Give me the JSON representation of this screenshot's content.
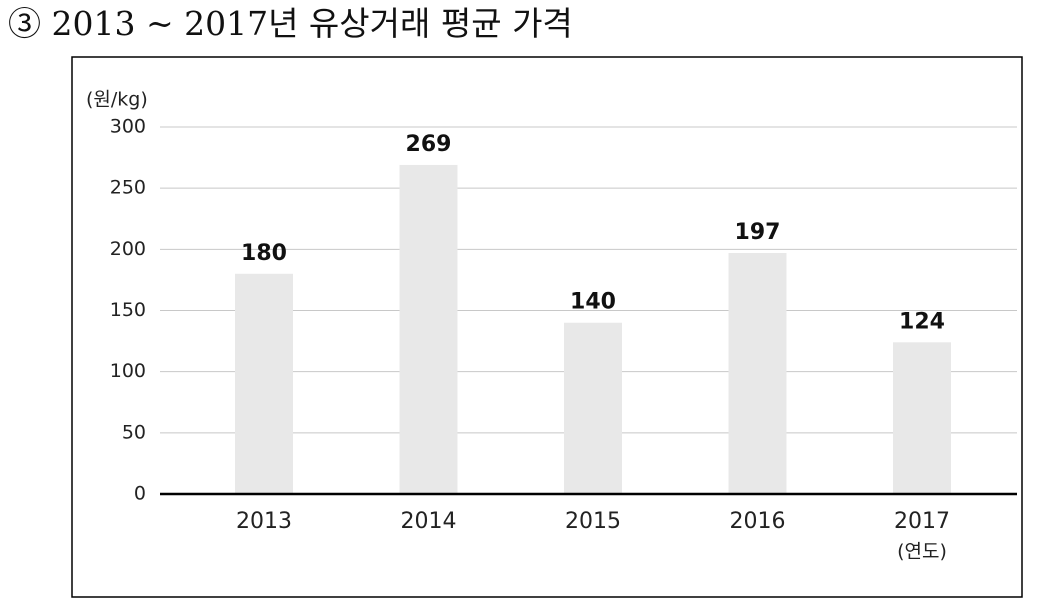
{
  "chart_data": {
    "type": "bar",
    "title": "③ 2013 ~ 2017년 유상거래 평균 가격",
    "y_axis_label": "(원/kg)",
    "x_axis_label": "(연도)",
    "categories": [
      "2013",
      "2014",
      "2015",
      "2016",
      "2017"
    ],
    "values": [
      180,
      269,
      140,
      197,
      124
    ],
    "color": "#e8e8e8",
    "ylim": [
      0,
      300
    ],
    "yticks": [
      0,
      50,
      100,
      150,
      200,
      250,
      300
    ],
    "grid": true
  }
}
